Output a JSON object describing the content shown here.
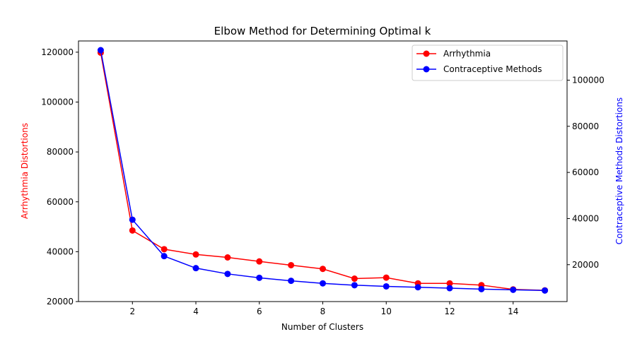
{
  "chart_data": {
    "type": "line",
    "title": "Elbow Method for Determining Optimal k",
    "xlabel": "Number of Clusters",
    "ylabel_left": "Arrhythmia Distortions",
    "ylabel_right": "Contraceptive Methods Distortions",
    "x": [
      1,
      2,
      3,
      4,
      5,
      6,
      7,
      8,
      9,
      10,
      11,
      12,
      13,
      14,
      15
    ],
    "xlim": [
      0.3,
      15.7
    ],
    "x_ticks": [
      2,
      4,
      6,
      8,
      10,
      12,
      14
    ],
    "ylim_left": [
      20000,
      124500
    ],
    "y_ticks_left": [
      20000,
      40000,
      60000,
      80000,
      100000,
      120000
    ],
    "ylim_right": [
      4000,
      117000
    ],
    "y_ticks_right": [
      20000,
      40000,
      60000,
      80000,
      100000
    ],
    "legend_position": "top-right",
    "grid": false,
    "series": [
      {
        "name": "Arrhythmia",
        "axis": "left",
        "color": "#ff0000",
        "values": [
          119800,
          48500,
          41000,
          38900,
          37700,
          36100,
          34600,
          33100,
          29200,
          29600,
          27300,
          27300,
          26600,
          24900,
          24500
        ]
      },
      {
        "name": "Contraceptive Methods",
        "axis": "right",
        "color": "#0000ff",
        "values": [
          113000,
          39500,
          23700,
          18500,
          16000,
          14300,
          13000,
          11900,
          11100,
          10600,
          10200,
          9800,
          9400,
          9100,
          8800
        ]
      }
    ]
  }
}
